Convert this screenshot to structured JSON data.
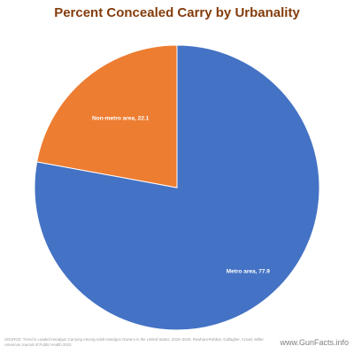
{
  "chart_data": {
    "type": "pie",
    "title": "Percent Concealed Carry by Urbanality",
    "categories": [
      "Metro area",
      "Non-metro area"
    ],
    "values": [
      77.9,
      22.1
    ],
    "labels": [
      "Metro area, 77.9",
      "Non-metro area, 22.1"
    ],
    "colors": [
      "#4472c4",
      "#ed7d31"
    ],
    "legend": "none"
  },
  "source_text": "SOURCE: Trend in Loaded Handgun Carrying Among Adult Handgun Owners in the United States, 2015–2019. Rowhani-Rahbar, Gallagher, Azrael, Miller. American Journal of Public Health 2022.",
  "watermark": "www.GunFacts.info"
}
